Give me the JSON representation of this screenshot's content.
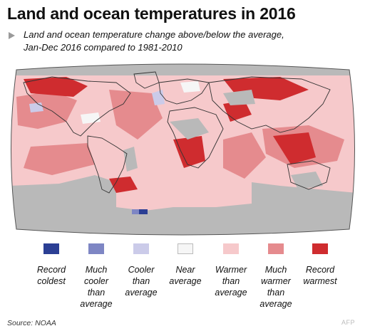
{
  "title": "Land and ocean temperatures in 2016",
  "subtitle_line1": "Land and ocean temperature change above/below the average,",
  "subtitle_line2": "Jan-Dec 2016 compared to 1981-2010",
  "legend": [
    {
      "line1": "Record",
      "line2": "coldest",
      "line3": "",
      "line4": "",
      "color": "#2b3f94"
    },
    {
      "line1": "Much",
      "line2": "cooler",
      "line3": "than",
      "line4": "average",
      "color": "#7e86c4"
    },
    {
      "line1": "Cooler",
      "line2": "than",
      "line3": "average",
      "line4": "",
      "color": "#cbcbe9"
    },
    {
      "line1": "Near",
      "line2": "average",
      "line3": "",
      "line4": "",
      "color": "#f6f6f6"
    },
    {
      "line1": "Warmer",
      "line2": "than",
      "line3": "average",
      "line4": "",
      "color": "#f6c9cb"
    },
    {
      "line1": "Much",
      "line2": "warmer",
      "line3": "than",
      "line4": "average",
      "color": "#e58b8e"
    },
    {
      "line1": "Record",
      "line2": "warmest",
      "line3": "",
      "line4": "",
      "color": "#cf2c2f"
    }
  ],
  "colors": {
    "no_data": "#b9b9b9",
    "warmer": "#f6c9cb",
    "much_warmer": "#e58b8e",
    "record_warmest": "#cf2c2f",
    "cooler": "#cbcbe9",
    "much_cooler": "#7e86c4",
    "record_coldest": "#2b3f94",
    "near_average": "#f6f6f6"
  },
  "source": "Source: NOAA",
  "credit": "AFP"
}
